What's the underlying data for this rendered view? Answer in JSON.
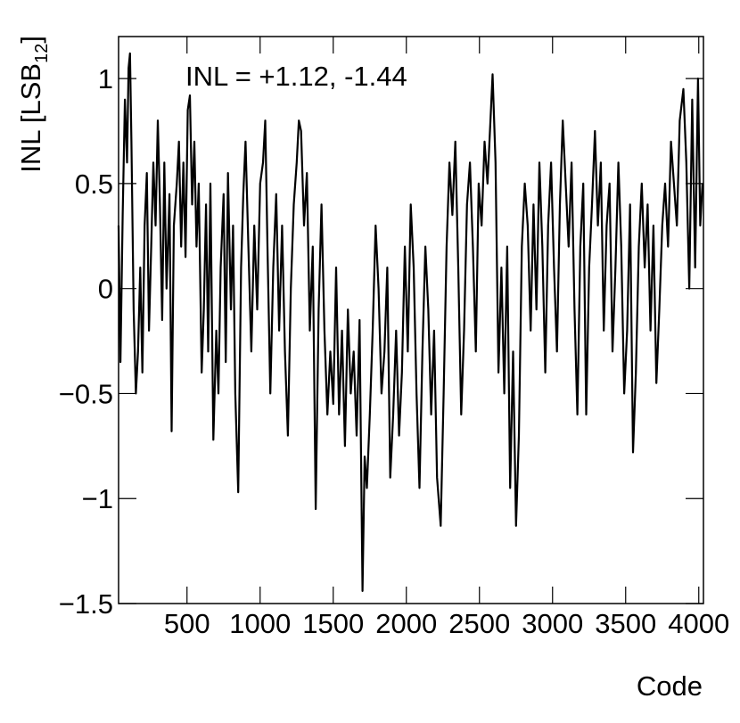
{
  "chart_data": {
    "type": "line",
    "annotation": "INL = +1.12, -1.44",
    "x_label": "Code",
    "y_label": "INL [LSB",
    "y_label_subscript": "12",
    "y_label_close": "]",
    "xlim": [
      32,
      4032
    ],
    "ylim": [
      -1.5,
      1.2
    ],
    "xticks": [
      500,
      1000,
      1500,
      2000,
      2500,
      3000,
      3500,
      4000
    ],
    "yticks": [
      1,
      0.5,
      0,
      {
        "value": -0.5,
        "label": "−0.5"
      },
      {
        "value": -1,
        "label": "−1"
      },
      {
        "value": -1.5,
        "label": "−1.5"
      }
    ],
    "series": [
      {
        "color": "#000000",
        "x": [
          32,
          45,
          60,
          75,
          90,
          100,
          110,
          120,
          135,
          150,
          165,
          180,
          195,
          210,
          225,
          240,
          255,
          270,
          285,
          300,
          315,
          330,
          345,
          360,
          380,
          395,
          410,
          430,
          445,
          460,
          475,
          490,
          505,
          520,
          535,
          550,
          565,
          580,
          600,
          615,
          630,
          645,
          660,
          680,
          700,
          715,
          730,
          750,
          765,
          780,
          800,
          815,
          830,
          850,
          870,
          885,
          900,
          920,
          940,
          960,
          980,
          1000,
          1020,
          1035,
          1050,
          1070,
          1090,
          1110,
          1130,
          1150,
          1170,
          1190,
          1210,
          1230,
          1250,
          1265,
          1280,
          1300,
          1320,
          1340,
          1360,
          1380,
          1400,
          1420,
          1440,
          1460,
          1480,
          1500,
          1520,
          1540,
          1560,
          1580,
          1600,
          1620,
          1640,
          1660,
          1680,
          1700,
          1715,
          1730,
          1750,
          1770,
          1790,
          1810,
          1830,
          1850,
          1870,
          1890,
          1910,
          1930,
          1950,
          1970,
          1990,
          2010,
          2030,
          2050,
          2070,
          2090,
          2110,
          2130,
          2150,
          2170,
          2190,
          2210,
          2235,
          2255,
          2275,
          2295,
          2315,
          2335,
          2355,
          2375,
          2395,
          2415,
          2435,
          2455,
          2475,
          2495,
          2515,
          2535,
          2555,
          2575,
          2590,
          2610,
          2630,
          2650,
          2670,
          2690,
          2710,
          2730,
          2750,
          2770,
          2790,
          2810,
          2830,
          2850,
          2870,
          2890,
          2910,
          2930,
          2950,
          2970,
          2990,
          3010,
          3030,
          3050,
          3070,
          3090,
          3110,
          3130,
          3150,
          3170,
          3190,
          3210,
          3230,
          3250,
          3270,
          3290,
          3310,
          3330,
          3350,
          3370,
          3390,
          3410,
          3430,
          3450,
          3470,
          3490,
          3510,
          3530,
          3550,
          3570,
          3590,
          3610,
          3630,
          3650,
          3670,
          3690,
          3710,
          3730,
          3750,
          3770,
          3790,
          3810,
          3830,
          3850,
          3870,
          3895,
          3915,
          3935,
          3955,
          3975,
          3995,
          4010,
          4025
        ],
        "values": [
          0.3,
          -0.35,
          0.35,
          0.9,
          0.6,
          1.05,
          1.12,
          0.7,
          -0.1,
          -0.5,
          -0.3,
          0.1,
          -0.4,
          0.3,
          0.55,
          -0.2,
          0.2,
          0.6,
          0.3,
          0.8,
          0.4,
          -0.15,
          0.6,
          0.0,
          0.45,
          -0.68,
          0.3,
          0.5,
          0.7,
          0.2,
          0.6,
          0.15,
          0.85,
          0.92,
          0.4,
          0.7,
          0.2,
          0.5,
          -0.4,
          -0.1,
          0.4,
          -0.3,
          0.5,
          -0.72,
          -0.2,
          -0.5,
          0.1,
          0.45,
          -0.35,
          0.55,
          -0.1,
          0.3,
          -0.5,
          -0.97,
          0.1,
          0.45,
          0.7,
          0.2,
          -0.3,
          0.3,
          -0.1,
          0.5,
          0.6,
          0.8,
          0.2,
          -0.5,
          0.1,
          0.45,
          -0.2,
          0.3,
          -0.3,
          -0.7,
          0.0,
          0.4,
          0.6,
          0.8,
          0.75,
          0.3,
          0.55,
          -0.2,
          0.2,
          -1.05,
          -0.1,
          0.4,
          -0.2,
          -0.6,
          -0.3,
          -0.55,
          0.1,
          -0.6,
          -0.2,
          -0.75,
          -0.1,
          -0.5,
          -0.3,
          -0.7,
          -0.15,
          -1.44,
          -0.8,
          -0.95,
          -0.6,
          -0.2,
          0.3,
          0.0,
          -0.5,
          -0.3,
          0.1,
          -0.9,
          -0.6,
          -0.2,
          -0.7,
          -0.4,
          0.2,
          -0.3,
          0.4,
          0.1,
          -0.5,
          -0.95,
          -0.3,
          0.2,
          -0.1,
          -0.6,
          -0.2,
          -0.9,
          -1.13,
          -0.5,
          0.2,
          0.6,
          0.35,
          0.7,
          0.1,
          -0.6,
          -0.2,
          0.4,
          0.6,
          0.2,
          -0.3,
          0.5,
          0.3,
          0.7,
          0.5,
          0.8,
          1.02,
          0.6,
          -0.4,
          0.1,
          -0.5,
          0.2,
          -0.95,
          -0.3,
          -1.13,
          -0.7,
          0.2,
          0.5,
          0.3,
          -0.2,
          0.4,
          -0.1,
          0.6,
          0.2,
          -0.4,
          0.3,
          0.6,
          0.1,
          -0.3,
          0.4,
          0.8,
          0.5,
          0.2,
          0.6,
          -0.1,
          -0.6,
          0.2,
          0.5,
          -0.6,
          0.1,
          0.4,
          0.75,
          0.3,
          0.6,
          -0.2,
          0.3,
          0.5,
          -0.3,
          0.1,
          0.6,
          0.2,
          -0.5,
          -0.2,
          0.4,
          -0.78,
          -0.4,
          0.2,
          0.5,
          0.1,
          0.4,
          -0.2,
          0.3,
          -0.45,
          -0.1,
          0.3,
          0.5,
          0.2,
          0.7,
          0.5,
          0.3,
          0.8,
          0.95,
          0.6,
          0.0,
          0.9,
          0.1,
          1.0,
          0.3,
          0.5
        ]
      }
    ]
  }
}
